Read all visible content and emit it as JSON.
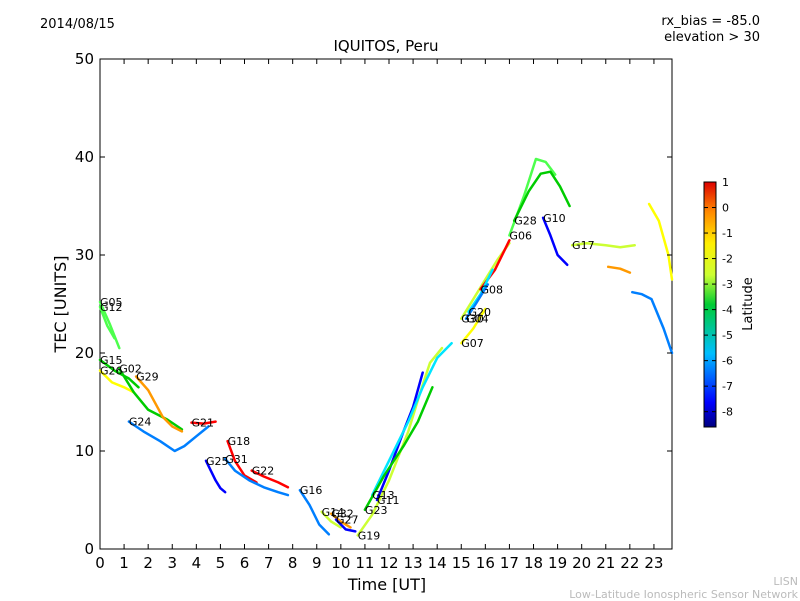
{
  "header": {
    "date": "2014/08/15",
    "rx_bias": "rx_bias = -85.0",
    "elevation": "elevation > 30"
  },
  "credit": {
    "line1": "LISN",
    "line2": "Low-Latitude Ionospheric Sensor Network"
  },
  "chart_data": {
    "type": "scatter",
    "title": "IQUITOS, Peru",
    "xlabel": "Time [UT]",
    "ylabel": "TEC [UNITS]",
    "xlim": [
      0,
      23.75
    ],
    "ylim": [
      0,
      50
    ],
    "xticks": [
      0,
      1,
      2,
      3,
      4,
      5,
      6,
      7,
      8,
      9,
      10,
      11,
      12,
      13,
      14,
      15,
      16,
      17,
      18,
      19,
      20,
      21,
      22,
      23
    ],
    "yticks": [
      0,
      10,
      20,
      30,
      40,
      50
    ],
    "grid": false,
    "colorbar": {
      "label": "Latitude",
      "range": [
        -8.6,
        1.0
      ],
      "ticks": [
        1,
        0,
        -1,
        -2,
        -3,
        -4,
        -5,
        -6,
        -7,
        -8
      ],
      "colormap": [
        "#00007f",
        "#0000ff",
        "#007fff",
        "#00e5ff",
        "#4dff4d",
        "#00cc00",
        "#ccff33",
        "#ffff00",
        "#ff9900",
        "#ff0000",
        "#cc0000"
      ]
    },
    "series": [
      {
        "name": "G05",
        "points": [
          [
            0,
            25.2
          ],
          [
            0.4,
            23
          ],
          [
            0.8,
            20.5
          ]
        ],
        "lat": -4.5
      },
      {
        "name": "G12",
        "points": [
          [
            0,
            24.7
          ],
          [
            0.3,
            22.8
          ],
          [
            0.6,
            21.5
          ]
        ],
        "lat": -5.2
      },
      {
        "name": "G15",
        "points": [
          [
            0,
            19.3
          ],
          [
            0.6,
            18.2
          ],
          [
            1.2,
            17.4
          ],
          [
            1.6,
            16.5
          ]
        ],
        "lat": -3.5
      },
      {
        "name": "G26",
        "points": [
          [
            0,
            18.2
          ],
          [
            0.5,
            17
          ],
          [
            1,
            16.5
          ],
          [
            1.4,
            16
          ]
        ],
        "lat": -2.2
      },
      {
        "name": "G02",
        "points": [
          [
            0.8,
            18.4
          ],
          [
            1.4,
            16
          ],
          [
            2.0,
            14.2
          ],
          [
            2.8,
            13.2
          ],
          [
            3.4,
            12.2
          ]
        ],
        "lat": -4.1
      },
      {
        "name": "G29",
        "points": [
          [
            1.5,
            17.6
          ],
          [
            2.0,
            16.2
          ],
          [
            2.6,
            13.5
          ],
          [
            3.0,
            12.5
          ],
          [
            3.4,
            12
          ]
        ],
        "lat": -0.8
      },
      {
        "name": "G24",
        "points": [
          [
            1.2,
            13
          ],
          [
            1.8,
            12
          ],
          [
            2.5,
            11
          ],
          [
            3.1,
            10
          ],
          [
            3.5,
            10.5
          ],
          [
            4.0,
            11.5
          ],
          [
            4.5,
            12.5
          ]
        ],
        "lat": -6.5
      },
      {
        "name": "G21",
        "points": [
          [
            3.8,
            12.9
          ],
          [
            4.3,
            12.8
          ],
          [
            4.8,
            13
          ]
        ],
        "lat": 0.3
      },
      {
        "name": "G25",
        "points": [
          [
            4.4,
            9
          ],
          [
            4.8,
            7
          ],
          [
            5.0,
            6.2
          ],
          [
            5.2,
            5.8
          ]
        ],
        "lat": -8.0
      },
      {
        "name": "G18",
        "points": [
          [
            5.3,
            11
          ],
          [
            5.6,
            9
          ],
          [
            6.0,
            7.5
          ],
          [
            6.5,
            6.8
          ]
        ],
        "lat": 0.5
      },
      {
        "name": "G31",
        "points": [
          [
            5.2,
            9.2
          ],
          [
            5.6,
            8
          ],
          [
            6.2,
            7
          ],
          [
            6.8,
            6.3
          ],
          [
            7.4,
            5.8
          ],
          [
            7.8,
            5.5
          ]
        ],
        "lat": -6.2
      },
      {
        "name": "G22",
        "points": [
          [
            6.3,
            8
          ],
          [
            6.8,
            7.4
          ],
          [
            7.4,
            6.8
          ],
          [
            7.8,
            6.3
          ]
        ],
        "lat": 0.2
      },
      {
        "name": "G16",
        "points": [
          [
            8.3,
            6
          ],
          [
            8.7,
            4.5
          ],
          [
            9.1,
            2.5
          ],
          [
            9.5,
            1.5
          ]
        ],
        "lat": -6.8
      },
      {
        "name": "G14",
        "points": [
          [
            9.2,
            3.8
          ],
          [
            9.6,
            2.8
          ],
          [
            10.0,
            2.2
          ]
        ],
        "lat": -2.5
      },
      {
        "name": "G32",
        "points": [
          [
            9.6,
            3.6
          ],
          [
            10.0,
            2.8
          ],
          [
            10.4,
            2.2
          ]
        ],
        "lat": -1.0
      },
      {
        "name": "G27",
        "points": [
          [
            9.8,
            3
          ],
          [
            10.2,
            2
          ],
          [
            10.6,
            1.8
          ]
        ],
        "lat": -7.5
      },
      {
        "name": "G19",
        "points": [
          [
            10.7,
            1.4
          ],
          [
            11.3,
            3.5
          ],
          [
            12,
            7
          ],
          [
            12.8,
            12
          ],
          [
            13.3,
            16
          ],
          [
            13.7,
            19
          ],
          [
            14.2,
            20.5
          ]
        ],
        "lat": -3.3
      },
      {
        "name": "G11",
        "points": [
          [
            11.5,
            5
          ],
          [
            12,
            8
          ],
          [
            12.6,
            12
          ],
          [
            13,
            14.5
          ],
          [
            13.4,
            18
          ]
        ],
        "lat": -7.2
      },
      {
        "name": "G13",
        "points": [
          [
            11.3,
            5.5
          ],
          [
            12.0,
            9
          ],
          [
            12.8,
            13
          ],
          [
            13.4,
            16.5
          ],
          [
            14.0,
            19.5
          ],
          [
            14.6,
            21
          ]
        ],
        "lat": -5.5
      },
      {
        "name": "G23",
        "points": [
          [
            11.0,
            4
          ],
          [
            11.8,
            7.5
          ],
          [
            12.6,
            10.5
          ],
          [
            13.2,
            13
          ],
          [
            13.8,
            16.5
          ]
        ],
        "lat": -3.8
      },
      {
        "name": "G30",
        "points": [
          [
            15,
            23.5
          ],
          [
            15.5,
            25.5
          ],
          [
            16.0,
            27.5
          ],
          [
            16.5,
            29.5
          ],
          [
            17.0,
            31.2
          ]
        ],
        "lat": -3.2
      },
      {
        "name": "G08",
        "points": [
          [
            15.8,
            26.5
          ],
          [
            16.4,
            28.5
          ],
          [
            17.0,
            31.5
          ]
        ],
        "lat": -0.2
      },
      {
        "name": "G20",
        "points": [
          [
            15.3,
            24.2
          ],
          [
            15.8,
            26
          ],
          [
            16.3,
            28.5
          ]
        ],
        "lat": -5.3
      },
      {
        "name": "G04",
        "points": [
          [
            15.2,
            23.5
          ],
          [
            15.6,
            25
          ],
          [
            16.1,
            27
          ]
        ],
        "lat": -6.4
      },
      {
        "name": "G07",
        "points": [
          [
            15.0,
            21
          ],
          [
            15.5,
            22.5
          ],
          [
            16.0,
            24.5
          ]
        ],
        "lat": -2.0
      },
      {
        "name": "G06",
        "points": [
          [
            17.0,
            32
          ],
          [
            17.6,
            36
          ],
          [
            18.1,
            39.8
          ],
          [
            18.5,
            39.5
          ],
          [
            18.9,
            38.2
          ]
        ],
        "lat": -4.6
      },
      {
        "name": "G28",
        "points": [
          [
            17.2,
            33.5
          ],
          [
            17.8,
            36.5
          ],
          [
            18.3,
            38.3
          ],
          [
            18.7,
            38.5
          ],
          [
            19.1,
            37
          ],
          [
            19.5,
            35
          ]
        ],
        "lat": -3.6
      },
      {
        "name": "G10",
        "points": [
          [
            18.4,
            33.8
          ],
          [
            18.7,
            32
          ],
          [
            19.0,
            30
          ],
          [
            19.4,
            29
          ]
        ],
        "lat": -7.6
      },
      {
        "name": "G17",
        "points": [
          [
            19.6,
            31
          ],
          [
            20.2,
            31.2
          ],
          [
            21.0,
            31
          ],
          [
            21.6,
            30.8
          ],
          [
            22.2,
            31
          ]
        ],
        "lat": -3.0
      },
      {
        "name": "",
        "points": [
          [
            22.8,
            35.2
          ],
          [
            23.2,
            33.5
          ],
          [
            23.6,
            30
          ],
          [
            23.75,
            27.5
          ]
        ],
        "lat": -1.5
      },
      {
        "name": "",
        "points": [
          [
            22.1,
            26.2
          ],
          [
            22.5,
            26
          ],
          [
            22.9,
            25.5
          ],
          [
            23.4,
            22.5
          ],
          [
            23.75,
            20
          ]
        ],
        "lat": -6.3
      },
      {
        "name": "",
        "points": [
          [
            21.1,
            28.8
          ],
          [
            21.6,
            28.6
          ],
          [
            22.0,
            28.2
          ]
        ],
        "lat": -0.8
      }
    ]
  }
}
